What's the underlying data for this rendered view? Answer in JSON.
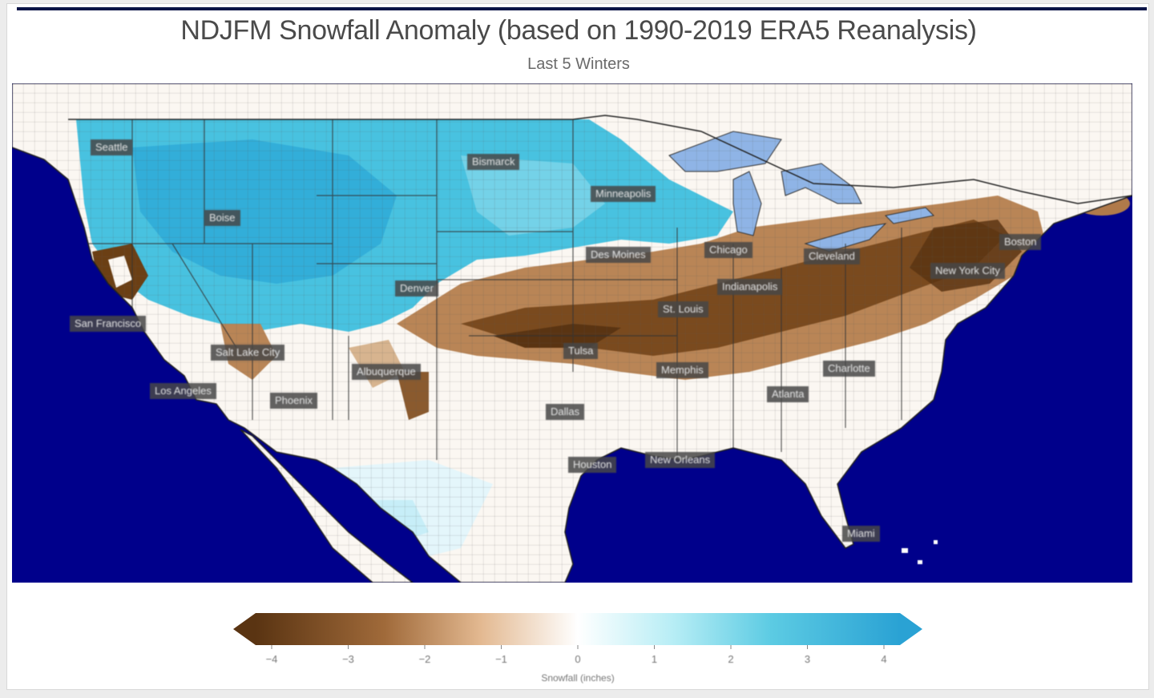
{
  "title": "NDJFM Snowfall Anomaly (based on 1990-2019 ERA5 Reanalysis)",
  "subtitle": "Last 5 Winters",
  "colors": {
    "ocean": "#00008b",
    "lakes": "#8fb4e6",
    "positive": "#38b9dc",
    "negative": "#6b3f14",
    "neutral": "#ffffff",
    "border": "#333333"
  },
  "cities": [
    {
      "id": "seattle",
      "label": "Seattle"
    },
    {
      "id": "bismarck",
      "label": "Bismarck"
    },
    {
      "id": "minneapolis",
      "label": "Minneapolis"
    },
    {
      "id": "boise",
      "label": "Boise"
    },
    {
      "id": "des-moines",
      "label": "Des Moines"
    },
    {
      "id": "chicago",
      "label": "Chicago"
    },
    {
      "id": "cleveland",
      "label": "Cleveland"
    },
    {
      "id": "boston",
      "label": "Boston"
    },
    {
      "id": "new-york-city",
      "label": "New York City"
    },
    {
      "id": "indianapolis",
      "label": "Indianapolis"
    },
    {
      "id": "denver",
      "label": "Denver"
    },
    {
      "id": "st-louis",
      "label": "St. Louis"
    },
    {
      "id": "san-francisco",
      "label": "San Francisco"
    },
    {
      "id": "salt-lake-city",
      "label": "Salt Lake City"
    },
    {
      "id": "tulsa",
      "label": "Tulsa"
    },
    {
      "id": "albuquerque",
      "label": "Albuquerque"
    },
    {
      "id": "memphis",
      "label": "Memphis"
    },
    {
      "id": "charlotte",
      "label": "Charlotte"
    },
    {
      "id": "los-angeles",
      "label": "Los Angeles"
    },
    {
      "id": "phoenix",
      "label": "Phoenix"
    },
    {
      "id": "atlanta",
      "label": "Atlanta"
    },
    {
      "id": "dallas",
      "label": "Dallas"
    },
    {
      "id": "houston",
      "label": "Houston"
    },
    {
      "id": "new-orleans",
      "label": "New Orleans"
    },
    {
      "id": "miami",
      "label": "Miami"
    }
  ],
  "colorbar": {
    "label": "Snowfall (inches)",
    "min": -4,
    "max": 4,
    "ticks": [
      "−4",
      "−3",
      "−2",
      "−1",
      "0",
      "1",
      "2",
      "3",
      "4"
    ],
    "extend": "both"
  }
}
